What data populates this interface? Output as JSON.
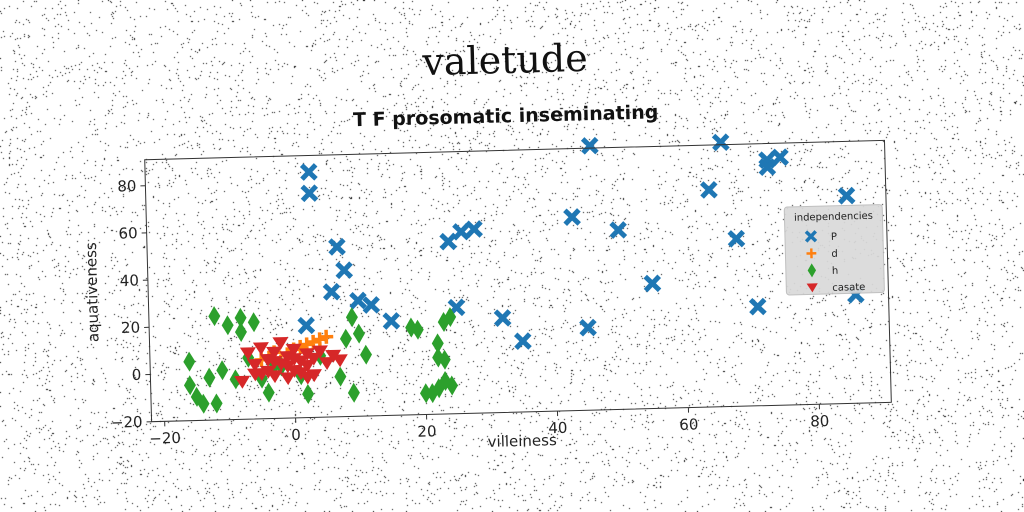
{
  "suptitle": "valetude",
  "chart_data": {
    "type": "scatter",
    "title": "T F prosomatic inseminating",
    "xlabel": "villeiness",
    "ylabel": "aquativeness",
    "xlim": [
      -22,
      91
    ],
    "ylim": [
      -20,
      91
    ],
    "xticks": [
      -20,
      0,
      20,
      40,
      60,
      80
    ],
    "yticks": [
      -20,
      0,
      20,
      40,
      60,
      80
    ],
    "grid": false,
    "legend": {
      "title": "independencies",
      "placement": "right"
    },
    "series": [
      {
        "name": "P",
        "marker": "x",
        "color": "#1f77b4",
        "points": [
          [
            3,
            84
          ],
          [
            3,
            75
          ],
          [
            7,
            52
          ],
          [
            8,
            42
          ],
          [
            6,
            33
          ],
          [
            10,
            29
          ],
          [
            12,
            27
          ],
          [
            2,
            19
          ],
          [
            15,
            20
          ],
          [
            24,
            53
          ],
          [
            26,
            57
          ],
          [
            28,
            58
          ],
          [
            25,
            25
          ],
          [
            32,
            20
          ],
          [
            35,
            10
          ],
          [
            43,
            62
          ],
          [
            45,
            15
          ],
          [
            46,
            92
          ],
          [
            50,
            56
          ],
          [
            55,
            33
          ],
          [
            64,
            72
          ],
          [
            66,
            92
          ],
          [
            68,
            51
          ],
          [
            71,
            22
          ],
          [
            73,
            84
          ],
          [
            73,
            81
          ],
          [
            75,
            85
          ],
          [
            85,
            68
          ],
          [
            86,
            26
          ]
        ]
      },
      {
        "name": "d",
        "marker": "+",
        "color": "#ff7f0e",
        "points": [
          [
            -5,
            5
          ],
          [
            -3,
            8
          ],
          [
            -1,
            7
          ],
          [
            1,
            10
          ],
          [
            2,
            11
          ],
          [
            3,
            12
          ],
          [
            4,
            13
          ],
          [
            5,
            14
          ],
          [
            -2,
            4
          ],
          [
            0,
            9
          ]
        ]
      },
      {
        "name": "h",
        "marker": "d",
        "color": "#2ca02c",
        "points": [
          [
            -16,
            5
          ],
          [
            -16,
            -5
          ],
          [
            -15,
            -10
          ],
          [
            -14,
            -13
          ],
          [
            -13,
            -2
          ],
          [
            -12,
            -13
          ],
          [
            -12,
            24
          ],
          [
            -11,
            1
          ],
          [
            -10,
            20
          ],
          [
            -9,
            -3
          ],
          [
            -8,
            23
          ],
          [
            -8,
            17
          ],
          [
            -7,
            6
          ],
          [
            -6,
            21
          ],
          [
            -5,
            -3
          ],
          [
            -4,
            -9
          ],
          [
            -3,
            3
          ],
          [
            -2,
            2
          ],
          [
            1,
            -2
          ],
          [
            2,
            -10
          ],
          [
            4,
            6
          ],
          [
            7,
            -3
          ],
          [
            8,
            13
          ],
          [
            9,
            22
          ],
          [
            9,
            -10
          ],
          [
            10,
            15
          ],
          [
            11,
            6
          ],
          [
            18,
            17
          ],
          [
            19,
            16
          ],
          [
            20,
            -11
          ],
          [
            21,
            -11
          ],
          [
            22,
            10
          ],
          [
            22,
            4
          ],
          [
            22,
            -9
          ],
          [
            23,
            3
          ],
          [
            23,
            19
          ],
          [
            24,
            -8
          ],
          [
            24,
            21
          ],
          [
            23,
            -6
          ]
        ]
      },
      {
        "name": "casate",
        "marker": "v",
        "color": "#d62728",
        "points": [
          [
            -8,
            -4
          ],
          [
            -7,
            8
          ],
          [
            -6,
            3
          ],
          [
            -5,
            -1
          ],
          [
            -5,
            10
          ],
          [
            -4,
            5
          ],
          [
            -4,
            0
          ],
          [
            -3,
            8
          ],
          [
            -3,
            -2
          ],
          [
            -2,
            3
          ],
          [
            -2,
            12
          ],
          [
            -1,
            -3
          ],
          [
            -1,
            6
          ],
          [
            0,
            0
          ],
          [
            0,
            9
          ],
          [
            1,
            4
          ],
          [
            1,
            -1
          ],
          [
            2,
            7
          ],
          [
            2,
            2
          ],
          [
            3,
            5
          ],
          [
            3,
            -2
          ],
          [
            4,
            8
          ],
          [
            5,
            3
          ],
          [
            -6,
            -1
          ],
          [
            -1,
            2
          ],
          [
            6,
            6
          ],
          [
            7,
            4
          ],
          [
            -3,
            4
          ],
          [
            0,
            5
          ],
          [
            2,
            -3
          ]
        ]
      }
    ]
  }
}
